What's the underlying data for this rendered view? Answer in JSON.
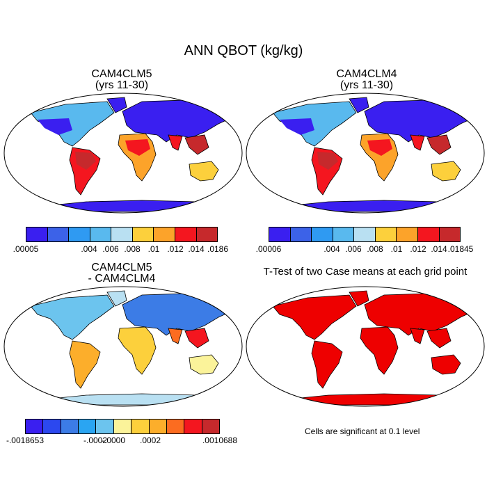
{
  "title": "ANN QBOT (kg/kg)",
  "panels": [
    {
      "title_line1": "CAM4CLM5",
      "title_line2": "(yrs 11-30)"
    },
    {
      "title_line1": "CAM4CLM4",
      "title_line2": "(yrs 11-30)"
    },
    {
      "title_line1": "CAM4CLM5",
      "title_line2": "- CAM4CLM4"
    },
    {
      "title_line1": "T-Test of two Case means at each grid point",
      "title_line2": ""
    }
  ],
  "colorbars": [
    {
      "colors": [
        "#3a1ff0",
        "#3c62e8",
        "#2f9af2",
        "#59b9ee",
        "#b9e0f2",
        "#fcd03c",
        "#fca32a",
        "#f4161f",
        "#c6292c"
      ],
      "labels": [
        ".00005",
        ".004",
        ".006",
        ".008",
        ".01",
        ".012",
        ".014",
        ".0186"
      ]
    },
    {
      "colors": [
        "#3a1ff0",
        "#3c62e8",
        "#2f9af2",
        "#59b9ee",
        "#b9e0f2",
        "#fcd03c",
        "#fca32a",
        "#f4161f",
        "#c6292c"
      ],
      "labels": [
        ".00006",
        ".004",
        ".006",
        ".008",
        ".01",
        ".012",
        ".014",
        ".01845"
      ]
    },
    {
      "colors": [
        "#3a1ff0",
        "#2c48ef",
        "#3c7ce6",
        "#2aa5f2",
        "#6cc4ee",
        "#fbf39a",
        "#fcd03c",
        "#fcae2b",
        "#fc6c20",
        "#f4161f",
        "#c6292c"
      ],
      "labels": [
        "-.0018653",
        "-.0002",
        "-.0000",
        ".0002",
        ".0010688"
      ]
    }
  ],
  "note": "Cells are significant at 0.1 level",
  "map_colors": {
    "ocean": "#ffffff",
    "cold": "#3a1ff0",
    "cool": "#59b9ee",
    "mid": "#fcd03c",
    "warm": "#fca32a",
    "hot": "#f4161f",
    "hottest": "#c6292c",
    "ttest": "#ee0000"
  }
}
